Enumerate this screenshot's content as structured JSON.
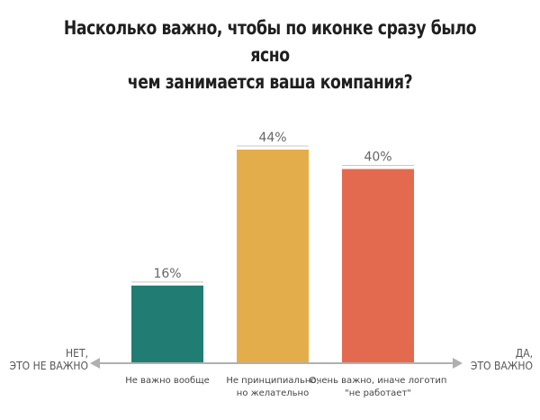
{
  "title": {
    "line1": "Насколько важно, чтобы по иконке сразу было ясно",
    "line2": "чем занимается ваша компания?"
  },
  "axis": {
    "left_label": [
      "НЕТ,",
      "ЭТО НЕ ВАЖНО"
    ],
    "right_label": [
      "ДА,",
      "ЭТО ВАЖНО"
    ]
  },
  "chart_data": {
    "type": "bar",
    "title": "Насколько важно, чтобы по иконке сразу было ясно чем занимается ваша компания?",
    "categories": [
      [
        "Не важно вообще"
      ],
      [
        "Не принципиально,",
        "но желательно"
      ],
      [
        "Очень важно, иначе логотип",
        "\"не работает\""
      ]
    ],
    "values": [
      16,
      44,
      40
    ],
    "value_labels": [
      "16%",
      "44%",
      "40%"
    ],
    "colors": [
      "#217c73",
      "#e4ad4c",
      "#e3694f"
    ],
    "ylim": [
      0,
      50
    ],
    "unit": "%",
    "grid": false,
    "legend": "none",
    "axis_color": "#b0b0b0"
  }
}
